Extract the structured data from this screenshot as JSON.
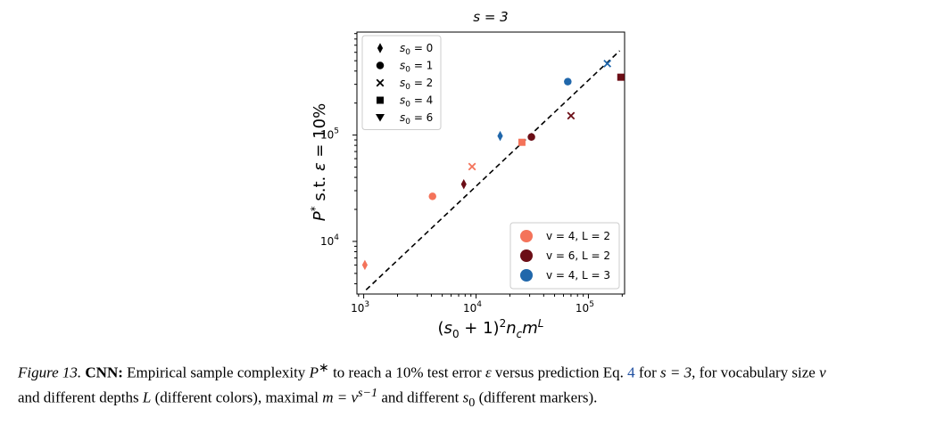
{
  "chart_data": {
    "type": "scatter",
    "title": "s = 3",
    "xlabel": "(s0 + 1)2ncmL",
    "ylabel": "P* s.t. ε = 10%",
    "x_scale": "log",
    "y_scale": "log",
    "xlim": [
      870,
      210000
    ],
    "ylim": [
      3200,
      930000
    ],
    "x_ticks": [
      {
        "value": 1000,
        "base": "10",
        "exp": "3"
      },
      {
        "value": 10000,
        "base": "10",
        "exp": "4"
      },
      {
        "value": 100000,
        "base": "10",
        "exp": "5"
      }
    ],
    "y_ticks": [
      {
        "value": 10000,
        "base": "10",
        "exp": "4"
      },
      {
        "value": 100000,
        "base": "10",
        "exp": "5"
      }
    ],
    "grid": false,
    "marker_legend_position": "top-left",
    "color_legend_position": "bottom-right",
    "marker_legend": [
      {
        "marker": "diamond",
        "label": "s0 = 0"
      },
      {
        "marker": "circle",
        "label": "s0 = 1"
      },
      {
        "marker": "x",
        "label": "s0 = 2"
      },
      {
        "marker": "square",
        "label": "s0 = 4"
      },
      {
        "marker": "triangle-down",
        "label": "s0 = 6"
      }
    ],
    "series": [
      {
        "name": "v = 4, L = 2",
        "color": "#f4735a",
        "points": [
          {
            "x": 1024,
            "y": 6000,
            "marker": "diamond"
          },
          {
            "x": 4096,
            "y": 26500,
            "marker": "circle"
          },
          {
            "x": 9216,
            "y": 50500,
            "marker": "x"
          },
          {
            "x": 25600,
            "y": 85500,
            "marker": "square"
          }
        ]
      },
      {
        "name": "v = 6, L = 2",
        "color": "#6b0d16",
        "points": [
          {
            "x": 7776,
            "y": 34500,
            "marker": "diamond"
          },
          {
            "x": 31104,
            "y": 96000,
            "marker": "circle"
          },
          {
            "x": 69984,
            "y": 152000,
            "marker": "x"
          },
          {
            "x": 194400,
            "y": 350000,
            "marker": "square"
          }
        ]
      },
      {
        "name": "v = 4, L = 3",
        "color": "#2067ab",
        "points": [
          {
            "x": 16384,
            "y": 98000,
            "marker": "diamond"
          },
          {
            "x": 65536,
            "y": 318000,
            "marker": "circle"
          },
          {
            "x": 147456,
            "y": 470000,
            "marker": "x"
          }
        ]
      }
    ],
    "reference_line": {
      "style": "dashed",
      "color": "#000000",
      "x": [
        1050,
        190000
      ],
      "y": [
        3500,
        620000
      ]
    }
  },
  "caption": {
    "figure_label": "Figure 13.",
    "bold_lead": "CNN:",
    "text_1": " Empirical sample complexity ",
    "P_symbol": "P",
    "text_2": " to reach a 10% test error ",
    "eps_symbol": "ε",
    "text_3": " versus prediction Eq. ",
    "eq_ref": "4",
    "text_4": " for ",
    "s_eq": "s = 3",
    "text_5": ", for vocabulary size ",
    "v_symbol": "v",
    "text_6": "and different depths ",
    "L_symbol": "L",
    "text_7": " (different colors), maximal ",
    "m_eq": "m = v",
    "m_exp": "s−1",
    "text_8": " and different ",
    "s0_symbol": "s",
    "s0_sub": "0",
    "text_9": " (different markers)."
  }
}
